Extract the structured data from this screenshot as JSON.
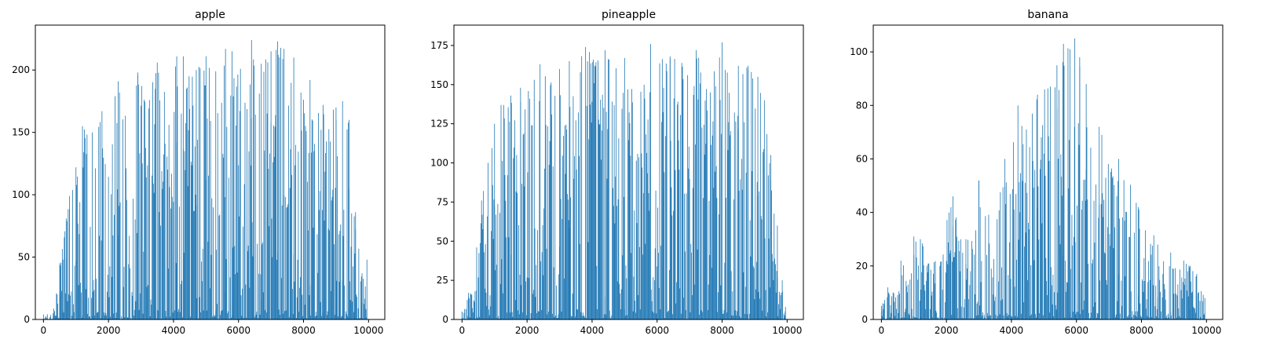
{
  "figure": {
    "bar_color": "#1f77b4",
    "background": "#ffffff"
  },
  "chart_data": [
    {
      "type": "bar",
      "title": "apple",
      "xlabel": "",
      "ylabel": "",
      "xlim": [
        -250,
        10500
      ],
      "ylim": [
        0,
        236
      ],
      "xticks": [
        0,
        2000,
        4000,
        6000,
        8000,
        10000
      ],
      "yticks": [
        0,
        50,
        100,
        150,
        200
      ],
      "grid": false,
      "bar_color": "#1f77b4",
      "anchors": [
        [
          0,
          4
        ],
        [
          300,
          5
        ],
        [
          500,
          45
        ],
        [
          650,
          70
        ],
        [
          800,
          99
        ],
        [
          1000,
          122
        ],
        [
          1200,
          155
        ],
        [
          1500,
          150
        ],
        [
          1800,
          167
        ],
        [
          2100,
          172
        ],
        [
          2300,
          191
        ],
        [
          2600,
          190
        ],
        [
          2900,
          198
        ],
        [
          3200,
          180
        ],
        [
          3500,
          206
        ],
        [
          3800,
          175
        ],
        [
          4100,
          211
        ],
        [
          4400,
          198
        ],
        [
          4700,
          200
        ],
        [
          5000,
          211
        ],
        [
          5300,
          199
        ],
        [
          5600,
          217
        ],
        [
          5900,
          201
        ],
        [
          6200,
          206
        ],
        [
          6400,
          224
        ],
        [
          6700,
          205
        ],
        [
          7000,
          215
        ],
        [
          7200,
          223
        ],
        [
          7500,
          208
        ],
        [
          7800,
          199
        ],
        [
          8000,
          187
        ],
        [
          8300,
          168
        ],
        [
          8600,
          172
        ],
        [
          8900,
          170
        ],
        [
          9200,
          175
        ],
        [
          9400,
          160
        ],
        [
          9600,
          86
        ],
        [
          9800,
          37
        ],
        [
          9950,
          48
        ]
      ],
      "series": [
        {
          "values": [
            [
              0,
              4
            ],
            [
              300,
              5
            ],
            [
              500,
              45
            ],
            [
              600,
              48
            ],
            [
              700,
              81
            ],
            [
              800,
              99
            ],
            [
              1000,
              122
            ],
            [
              1200,
              155
            ],
            [
              1500,
              150
            ],
            [
              1800,
              167
            ],
            [
              2300,
              191
            ],
            [
              2900,
              198
            ],
            [
              3500,
              206
            ],
            [
              4100,
              211
            ],
            [
              4300,
              211
            ],
            [
              4700,
              200
            ],
            [
              5000,
              211
            ],
            [
              5300,
              199
            ],
            [
              5600,
              217
            ],
            [
              5800,
              215
            ],
            [
              6400,
              224
            ],
            [
              6700,
              205
            ],
            [
              7000,
              215
            ],
            [
              7200,
              223
            ],
            [
              7400,
              217
            ],
            [
              7700,
              210
            ],
            [
              8200,
              192
            ],
            [
              8600,
              172
            ],
            [
              9000,
              170
            ],
            [
              9200,
              175
            ],
            [
              9400,
              160
            ],
            [
              9600,
              86
            ],
            [
              9800,
              37
            ],
            [
              9950,
              48
            ]
          ]
        }
      ]
    },
    {
      "type": "bar",
      "title": "pineapple",
      "xlabel": "",
      "ylabel": "",
      "xlim": [
        -250,
        10500
      ],
      "ylim": [
        0,
        188
      ],
      "xticks": [
        0,
        2000,
        4000,
        6000,
        8000,
        10000
      ],
      "yticks": [
        0,
        25,
        50,
        75,
        100,
        125,
        150,
        175
      ],
      "grid": false,
      "bar_color": "#1f77b4",
      "anchors": [
        [
          0,
          5
        ],
        [
          200,
          17
        ],
        [
          400,
          18
        ],
        [
          450,
          46
        ],
        [
          600,
          76
        ],
        [
          800,
          100
        ],
        [
          1000,
          125
        ],
        [
          1200,
          137
        ],
        [
          1500,
          143
        ],
        [
          1800,
          148
        ],
        [
          2100,
          152
        ],
        [
          2400,
          163
        ],
        [
          2700,
          160
        ],
        [
          3000,
          160
        ],
        [
          3300,
          165
        ],
        [
          3600,
          167
        ],
        [
          3800,
          174
        ],
        [
          4100,
          168
        ],
        [
          4400,
          172
        ],
        [
          4700,
          165
        ],
        [
          5000,
          167
        ],
        [
          5300,
          172
        ],
        [
          5600,
          170
        ],
        [
          5800,
          176
        ],
        [
          6100,
          172
        ],
        [
          6400,
          168
        ],
        [
          6700,
          166
        ],
        [
          7000,
          165
        ],
        [
          7200,
          172
        ],
        [
          7500,
          170
        ],
        [
          7800,
          168
        ],
        [
          8000,
          177
        ],
        [
          8200,
          167
        ],
        [
          8500,
          162
        ],
        [
          8800,
          162
        ],
        [
          9100,
          155
        ],
        [
          9300,
          140
        ],
        [
          9500,
          105
        ],
        [
          9700,
          60
        ],
        [
          9850,
          25
        ],
        [
          9950,
          8
        ]
      ],
      "series": [
        {
          "values": [
            [
              0,
              5
            ],
            [
              200,
              17
            ],
            [
              400,
              18
            ],
            [
              450,
              46
            ],
            [
              600,
              76
            ],
            [
              800,
              100
            ],
            [
              1000,
              125
            ],
            [
              1200,
              137
            ],
            [
              1500,
              143
            ],
            [
              1800,
              148
            ],
            [
              2400,
              163
            ],
            [
              3000,
              160
            ],
            [
              3300,
              165
            ],
            [
              3800,
              174
            ],
            [
              4400,
              172
            ],
            [
              5000,
              167
            ],
            [
              5800,
              176
            ],
            [
              6400,
              168
            ],
            [
              7200,
              172
            ],
            [
              8000,
              177
            ],
            [
              8500,
              162
            ],
            [
              8800,
              162
            ],
            [
              9100,
              155
            ],
            [
              9300,
              140
            ],
            [
              9500,
              105
            ],
            [
              9700,
              60
            ],
            [
              9850,
              25
            ],
            [
              9950,
              8
            ]
          ]
        }
      ]
    },
    {
      "type": "bar",
      "title": "banana",
      "xlabel": "",
      "ylabel": "",
      "xlim": [
        -250,
        10500
      ],
      "ylim": [
        0,
        110
      ],
      "xticks": [
        0,
        2000,
        4000,
        6000,
        8000,
        10000
      ],
      "yticks": [
        0,
        20,
        40,
        60,
        80,
        100
      ],
      "grid": false,
      "bar_color": "#1f77b4",
      "anchors": [
        [
          0,
          5
        ],
        [
          200,
          12
        ],
        [
          400,
          14
        ],
        [
          600,
          22
        ],
        [
          800,
          19
        ],
        [
          1000,
          31
        ],
        [
          1200,
          30
        ],
        [
          1400,
          27
        ],
        [
          1600,
          23
        ],
        [
          1800,
          20
        ],
        [
          2000,
          37
        ],
        [
          2200,
          46
        ],
        [
          2400,
          35
        ],
        [
          2600,
          30
        ],
        [
          2800,
          30
        ],
        [
          3000,
          52
        ],
        [
          3200,
          39
        ],
        [
          3400,
          40
        ],
        [
          3600,
          50
        ],
        [
          3800,
          60
        ],
        [
          4000,
          67
        ],
        [
          4200,
          80
        ],
        [
          4400,
          68
        ],
        [
          4600,
          80
        ],
        [
          4800,
          84
        ],
        [
          5000,
          87
        ],
        [
          5200,
          87
        ],
        [
          5400,
          95
        ],
        [
          5600,
          103
        ],
        [
          5800,
          101
        ],
        [
          5950,
          105
        ],
        [
          6100,
          98
        ],
        [
          6300,
          88
        ],
        [
          6500,
          75
        ],
        [
          6700,
          72
        ],
        [
          6900,
          66
        ],
        [
          7100,
          57
        ],
        [
          7300,
          60
        ],
        [
          7500,
          55
        ],
        [
          7700,
          50
        ],
        [
          7900,
          42
        ],
        [
          8100,
          40
        ],
        [
          8300,
          35
        ],
        [
          8500,
          28
        ],
        [
          8700,
          28
        ],
        [
          8900,
          25
        ],
        [
          9100,
          23
        ],
        [
          9300,
          22
        ],
        [
          9500,
          20
        ],
        [
          9700,
          17
        ],
        [
          9850,
          13
        ],
        [
          9950,
          8
        ]
      ],
      "series": [
        {
          "values": [
            [
              0,
              5
            ],
            [
              200,
              12
            ],
            [
              600,
              22
            ],
            [
              1000,
              31
            ],
            [
              1200,
              30
            ],
            [
              1800,
              20
            ],
            [
              2200,
              46
            ],
            [
              2600,
              30
            ],
            [
              3000,
              52
            ],
            [
              3800,
              60
            ],
            [
              4200,
              80
            ],
            [
              4800,
              84
            ],
            [
              5200,
              87
            ],
            [
              5400,
              95
            ],
            [
              5600,
              103
            ],
            [
              5800,
              101
            ],
            [
              5950,
              105
            ],
            [
              6100,
              98
            ],
            [
              6300,
              88
            ],
            [
              6700,
              72
            ],
            [
              7300,
              60
            ],
            [
              7900,
              42
            ],
            [
              8500,
              28
            ],
            [
              8900,
              25
            ],
            [
              9300,
              22
            ],
            [
              9500,
              20
            ],
            [
              9700,
              17
            ],
            [
              9950,
              8
            ]
          ]
        }
      ]
    }
  ]
}
